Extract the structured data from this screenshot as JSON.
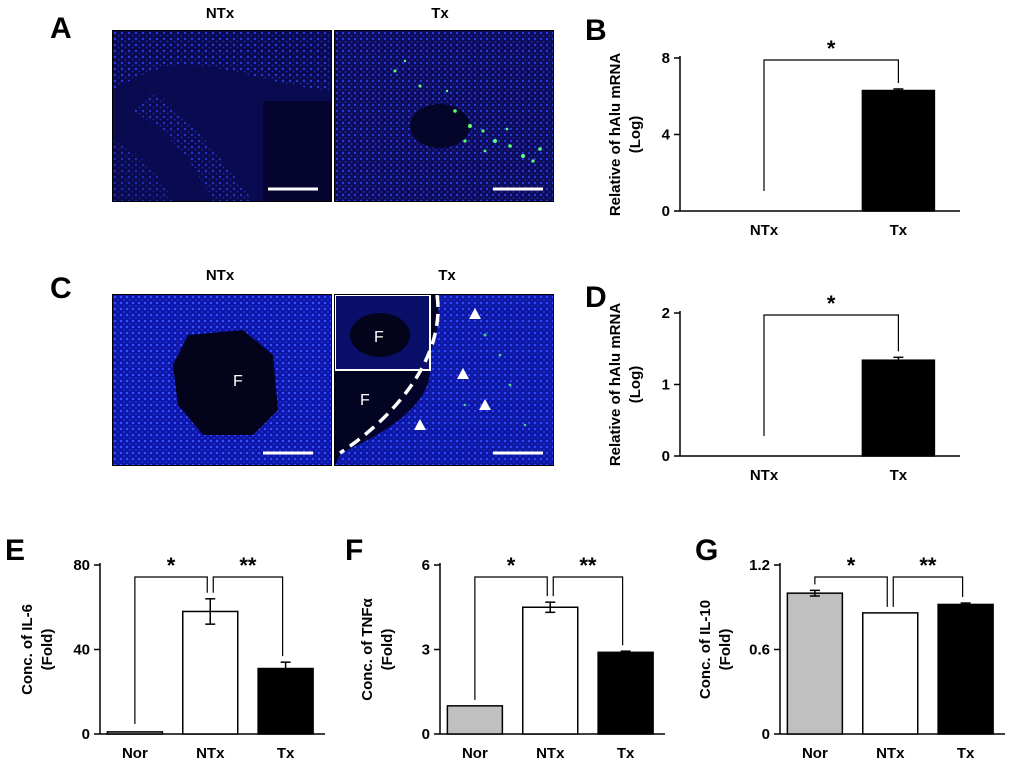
{
  "panels": {
    "A": {
      "letter": "A",
      "left_label": "NTx",
      "right_label": "Tx"
    },
    "C": {
      "letter": "C",
      "left_label": "NTx",
      "right_label": "Tx",
      "f_label": "F"
    }
  },
  "colors": {
    "nor": "#c0c0c0",
    "ntx": "#ffffff",
    "tx": "#000000",
    "micro_bg": "#0a0a55",
    "cell_blue": "#1a2ad0",
    "gfp": "#5dff7a"
  },
  "chart_data": [
    {
      "panel": "B",
      "type": "bar",
      "categories": [
        "NTx",
        "Tx"
      ],
      "values": [
        0,
        6.3
      ],
      "errors": [
        0,
        0.08
      ],
      "colors": [
        "#ffffff",
        "#000000"
      ],
      "ylabel": [
        "Relative of hAlu mRNA",
        "(Log)"
      ],
      "ylim": [
        0,
        8
      ],
      "yticks": [
        "0",
        "4",
        "8"
      ],
      "significance": [
        {
          "from": 0,
          "to": 1,
          "label": "*"
        }
      ]
    },
    {
      "panel": "D",
      "type": "bar",
      "categories": [
        "NTx",
        "Tx"
      ],
      "values": [
        0,
        1.34
      ],
      "errors": [
        0,
        0.04
      ],
      "colors": [
        "#ffffff",
        "#000000"
      ],
      "ylabel": [
        "Relative of hAlu mRNA",
        "(Log)"
      ],
      "ylim": [
        0,
        2
      ],
      "yticks": [
        "0",
        "1",
        "2"
      ],
      "significance": [
        {
          "from": 0,
          "to": 1,
          "label": "*"
        }
      ]
    },
    {
      "panel": "E",
      "type": "bar",
      "categories": [
        "Nor",
        "NTx",
        "Tx"
      ],
      "values": [
        1,
        58,
        31
      ],
      "errors": [
        0,
        6,
        3
      ],
      "colors": [
        "#c0c0c0",
        "#ffffff",
        "#000000"
      ],
      "ylabel": [
        "Conc. of IL-6",
        "(Fold)"
      ],
      "ylim": [
        0,
        80
      ],
      "yticks": [
        "0",
        "40",
        "80"
      ],
      "significance": [
        {
          "from": 0,
          "to": 1,
          "label": "*"
        },
        {
          "from": 1,
          "to": 2,
          "label": "**"
        }
      ]
    },
    {
      "panel": "F",
      "type": "bar",
      "categories": [
        "Nor",
        "NTx",
        "Tx"
      ],
      "values": [
        1,
        4.5,
        2.9
      ],
      "errors": [
        0,
        0.18,
        0.04
      ],
      "colors": [
        "#c0c0c0",
        "#ffffff",
        "#000000"
      ],
      "ylabel": [
        "Conc. of TNFα",
        "(Fold)"
      ],
      "ylim": [
        0,
        6
      ],
      "yticks": [
        "0",
        "3",
        "6"
      ],
      "significance": [
        {
          "from": 0,
          "to": 1,
          "label": "*"
        },
        {
          "from": 1,
          "to": 2,
          "label": "**"
        }
      ]
    },
    {
      "panel": "G",
      "type": "bar",
      "categories": [
        "Nor",
        "NTx",
        "Tx"
      ],
      "values": [
        1.0,
        0.86,
        0.92
      ],
      "errors": [
        0.02,
        0,
        0.01
      ],
      "colors": [
        "#c0c0c0",
        "#ffffff",
        "#000000"
      ],
      "ylabel": [
        "Conc. of IL-10",
        "(Fold)"
      ],
      "ylim": [
        0,
        1.2
      ],
      "yticks": [
        "0",
        "0.6",
        "1.2"
      ],
      "significance": [
        {
          "from": 0,
          "to": 1,
          "label": "*"
        },
        {
          "from": 1,
          "to": 2,
          "label": "**"
        }
      ]
    }
  ]
}
